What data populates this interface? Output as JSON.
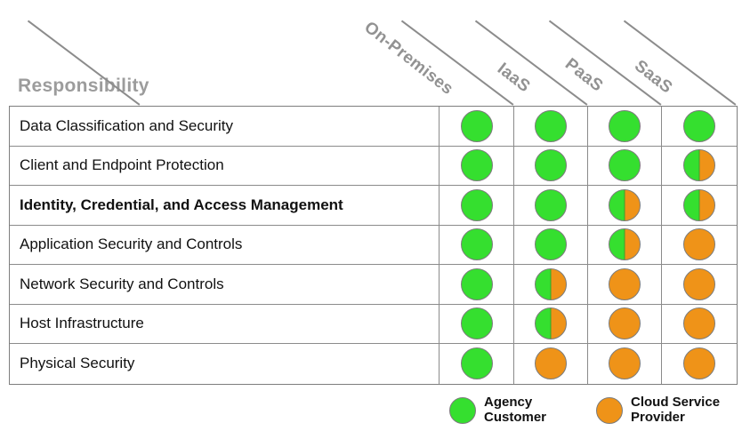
{
  "title": "Responsibility",
  "columns": [
    {
      "label": "On-Premises"
    },
    {
      "label": "IaaS"
    },
    {
      "label": "PaaS"
    },
    {
      "label": "SaaS"
    }
  ],
  "matrix": {
    "rows": [
      {
        "label": "Data Classification and Security",
        "bold": false,
        "cells": [
          "green",
          "green",
          "green",
          "green"
        ]
      },
      {
        "label": "Client and Endpoint Protection",
        "bold": false,
        "cells": [
          "green",
          "green",
          "green",
          "split"
        ]
      },
      {
        "label": "Identity, Credential, and Access Management",
        "bold": true,
        "cells": [
          "green",
          "green",
          "split",
          "split"
        ]
      },
      {
        "label": "Application Security and Controls",
        "bold": false,
        "cells": [
          "green",
          "green",
          "split",
          "orange"
        ]
      },
      {
        "label": "Network Security and Controls",
        "bold": false,
        "cells": [
          "green",
          "split",
          "orange",
          "orange"
        ]
      },
      {
        "label": "Host Infrastructure",
        "bold": false,
        "cells": [
          "green",
          "split",
          "orange",
          "orange"
        ]
      },
      {
        "label": "Physical Security",
        "bold": false,
        "cells": [
          "green",
          "orange",
          "orange",
          "orange"
        ]
      }
    ]
  },
  "legend": [
    {
      "color": "green",
      "label": "Agency\nCustomer"
    },
    {
      "color": "orange",
      "label": "Cloud Service\nProvider"
    }
  ],
  "colors": {
    "green": "#35df2f",
    "orange": "#ef9318",
    "header_text": "#929292",
    "grid_line": "#8b8b8b"
  }
}
